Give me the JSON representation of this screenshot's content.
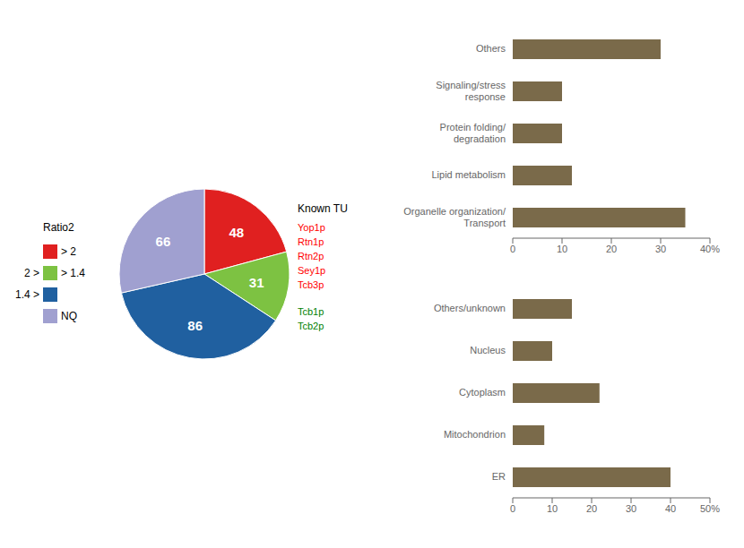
{
  "chart_data": [
    {
      "type": "pie",
      "values": [
        48,
        31,
        86,
        66
      ],
      "colors": [
        "#e02020",
        "#7dc242",
        "#2060a0",
        "#a0a0d0"
      ],
      "data_labels": true,
      "legend_title": "Ratio2",
      "categories": [
        "> 2",
        "> 1.4",
        null,
        "NQ"
      ],
      "legend_prefixes": [
        null,
        "2 >",
        "1.4 >",
        null
      ],
      "known_tu": {
        "title": "Known TU",
        "groups": [
          {
            "color": "red",
            "names": [
              "Yop1p",
              "Rtn1p",
              "Rtn2p",
              "Sey1p",
              "Tcb3p"
            ]
          },
          {
            "color": "green",
            "names": [
              "Tcb1p",
              "Tcb2p"
            ]
          }
        ]
      }
    },
    {
      "type": "bar",
      "orientation": "horizontal",
      "grid": false,
      "categories": [
        "Organelle organization/\nTransport",
        "Lipid metabolism",
        "Protein folding/\ndegradation",
        "Signaling/stress\nresponse",
        "Others"
      ],
      "values": [
        35,
        12,
        10,
        10,
        30
      ],
      "color": "#7a6a4a",
      "xlim": [
        0,
        40
      ],
      "xticks": [
        0,
        10,
        20,
        30,
        {
          "value": 40,
          "label": "40%"
        }
      ]
    },
    {
      "type": "bar",
      "orientation": "horizontal",
      "grid": false,
      "categories": [
        "ER",
        "Mitochondrion",
        "Cytoplasm",
        "Nucleus",
        "Others/unknown"
      ],
      "values": [
        40,
        8,
        22,
        10,
        15
      ],
      "color": "#7a6a4a",
      "xlim": [
        0,
        50
      ],
      "xticks": [
        0,
        10,
        20,
        30,
        40,
        {
          "value": 50,
          "label": "50%"
        }
      ]
    }
  ]
}
